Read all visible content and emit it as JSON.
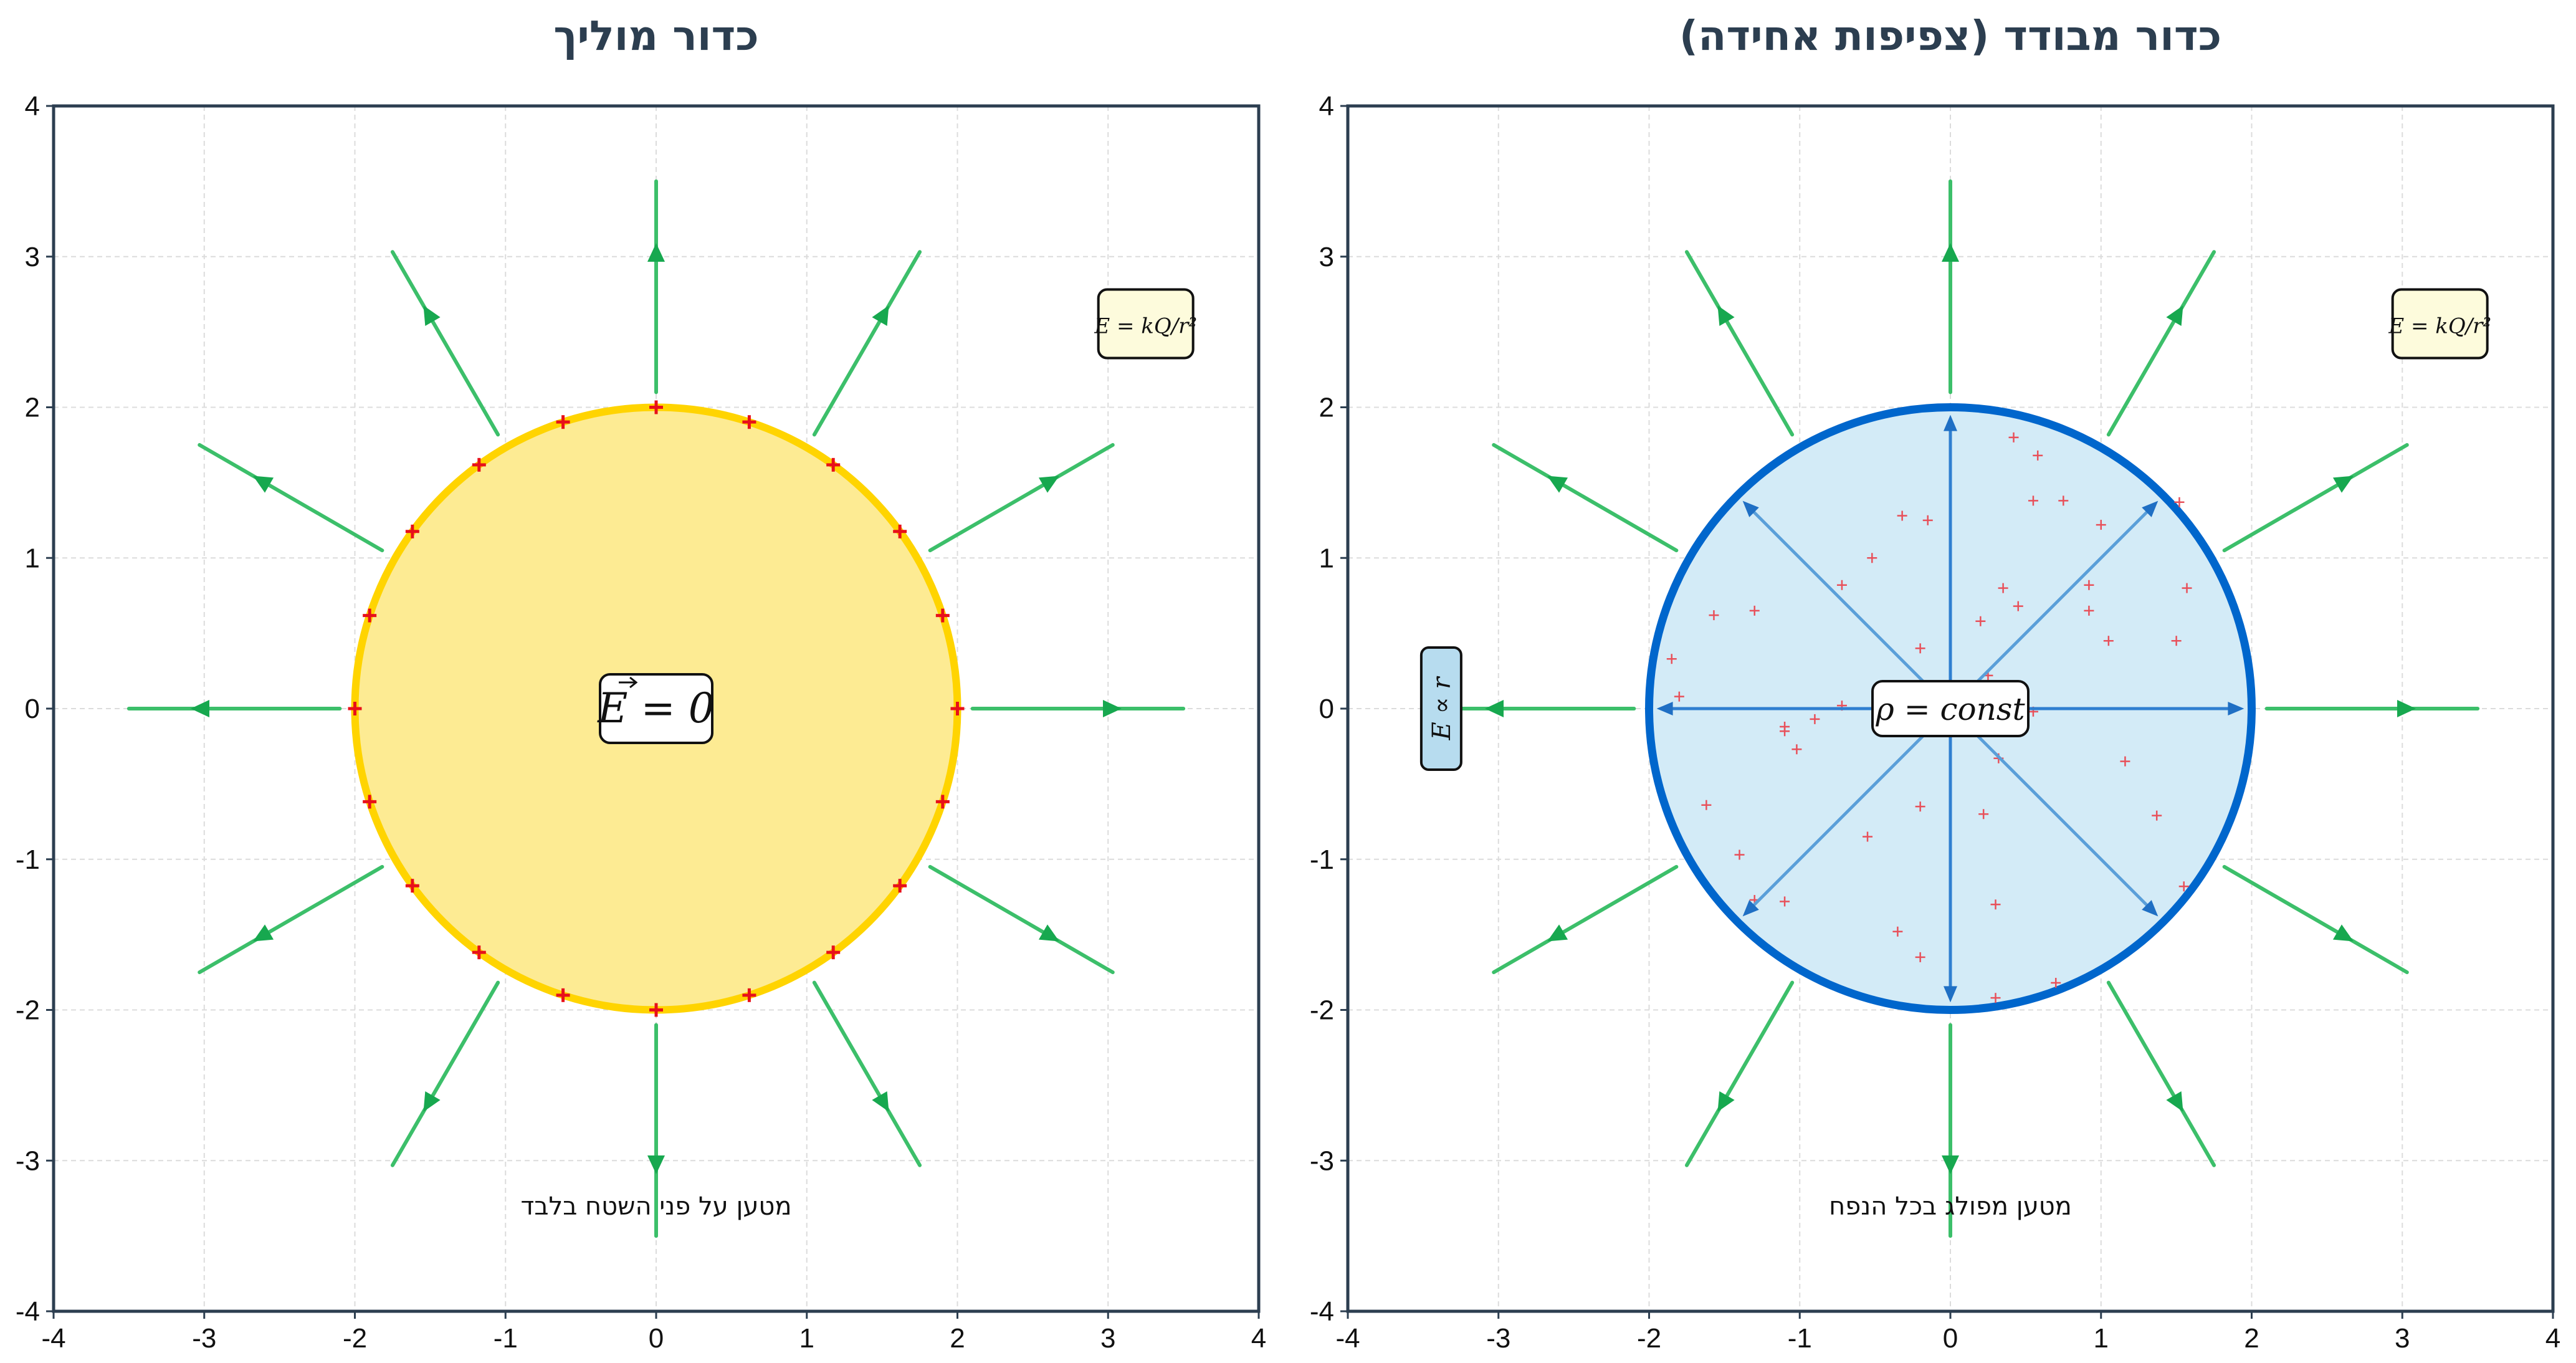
{
  "panels": [
    {
      "id": "conducting",
      "title": "כדור מוליך",
      "caption": "מטען על פני השטח בלבד",
      "center_label": "E = 0",
      "formula": "E = kQ/r²",
      "sphere_radius": 2,
      "sphere_fill": "#fdeb93",
      "sphere_edge": "#ffd400",
      "charge_color": "#e8101a",
      "surface_charges": 20
    },
    {
      "id": "insulating",
      "title": "כדור מבודד (צפיפות אחידה)",
      "caption": "מטען מפולג בכל הנפח",
      "center_label": "ρ = const",
      "formula": "E = kQ/r²",
      "side_label": "E ∝ r",
      "sphere_radius": 2,
      "sphere_fill": "#d3ebf7",
      "sphere_edge": "#0066cc",
      "inner_arrow_color": "#5a9fd9",
      "charge_color": "#e8505a"
    }
  ],
  "axes": {
    "xlim": [
      -4,
      4
    ],
    "ylim": [
      -4,
      4
    ],
    "xticks": [
      "-4",
      "-3",
      "-2",
      "-1",
      "0",
      "1",
      "2",
      "3",
      "4"
    ],
    "yticks": [
      "4",
      "3",
      "2",
      "1",
      "0",
      "-1",
      "-2",
      "-3",
      "-4"
    ],
    "grid": true
  },
  "field_lines": {
    "count": 12,
    "color": "#3cbf6a",
    "arrow_color": "#17a84f",
    "r_start": 2.1,
    "r_end": 3.5
  },
  "volume_charges": [
    [
      0.42,
      1.8
    ],
    [
      0.58,
      1.68
    ],
    [
      1.52,
      1.37
    ],
    [
      -0.15,
      1.25
    ],
    [
      -0.32,
      1.28
    ],
    [
      0.55,
      1.38
    ],
    [
      0.75,
      1.38
    ],
    [
      1.0,
      1.22
    ],
    [
      -0.52,
      1.0
    ],
    [
      -0.72,
      0.82
    ],
    [
      0.35,
      0.8
    ],
    [
      0.92,
      0.82
    ],
    [
      1.57,
      0.8
    ],
    [
      -1.57,
      0.62
    ],
    [
      -1.3,
      0.65
    ],
    [
      0.45,
      0.68
    ],
    [
      0.92,
      0.65
    ],
    [
      0.2,
      0.58
    ],
    [
      1.05,
      0.45
    ],
    [
      1.5,
      0.45
    ],
    [
      -1.85,
      0.33
    ],
    [
      -0.2,
      0.4
    ],
    [
      -1.8,
      0.08
    ],
    [
      0.25,
      0.22
    ],
    [
      -0.72,
      0.02
    ],
    [
      -0.9,
      -0.07
    ],
    [
      -1.1,
      -0.12
    ],
    [
      0.55,
      -0.02
    ],
    [
      -1.1,
      -0.15
    ],
    [
      -1.02,
      -0.27
    ],
    [
      0.32,
      -0.33
    ],
    [
      1.16,
      -0.35
    ],
    [
      -1.62,
      -0.64
    ],
    [
      -0.2,
      -0.65
    ],
    [
      0.22,
      -0.7
    ],
    [
      1.37,
      -0.71
    ],
    [
      -1.4,
      -0.97
    ],
    [
      -0.55,
      -0.85
    ],
    [
      1.55,
      -1.18
    ],
    [
      -1.3,
      -1.27
    ],
    [
      -1.1,
      -1.28
    ],
    [
      0.3,
      -1.3
    ],
    [
      -0.35,
      -1.48
    ],
    [
      -0.2,
      -1.65
    ],
    [
      0.7,
      -1.82
    ],
    [
      0.3,
      -1.92
    ]
  ]
}
